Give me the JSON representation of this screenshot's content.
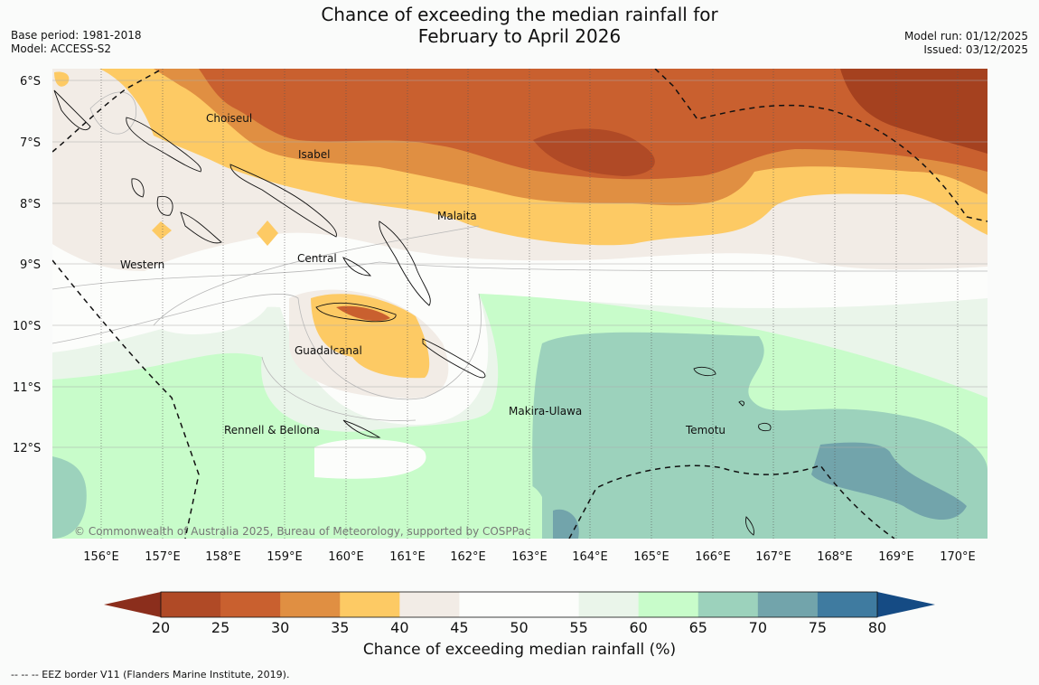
{
  "header": {
    "title_line1": "Chance of exceeding the median rainfall for",
    "title_line2": "February to April 2026",
    "base_period": "Base period: 1981-2018",
    "model": "Model: ACCESS-S2",
    "model_run": "Model run: 01/12/2025",
    "issued": "Issued: 03/12/2025"
  },
  "map": {
    "latitude_labels": [
      "6°S",
      "7°S",
      "8°S",
      "9°S",
      "10°S",
      "11°S",
      "12°S"
    ],
    "longitude_labels": [
      "156°E",
      "157°E",
      "158°E",
      "159°E",
      "160°E",
      "161°E",
      "162°E",
      "163°E",
      "164°E",
      "165°E",
      "166°E",
      "167°E",
      "168°E",
      "169°E",
      "170°E"
    ],
    "regions": [
      "Choiseul",
      "Isabel",
      "Malaita",
      "Central",
      "Western",
      "Guadalcanal",
      "Makira-Ulawa",
      "Rennell & Bellona",
      "Temotu"
    ],
    "copyright": "© Commonwealth of Australia 2025, Bureau of Meteorology, supported by COSPPac"
  },
  "colorbar": {
    "ticks": [
      "20",
      "25",
      "30",
      "35",
      "40",
      "45",
      "50",
      "55",
      "60",
      "65",
      "70",
      "75",
      "80"
    ],
    "colors": [
      "#b04a26",
      "#c9602f",
      "#e08f42",
      "#fdca64",
      "#f2ece6",
      "#fcfdfb",
      "#fcfdfb",
      "#eaf5ea",
      "#c8fcca",
      "#9cd2bc",
      "#72a4ab",
      "#3f7ba0"
    ],
    "low_arrow_color": "#8b2e1c",
    "high_arrow_color": "#154b84",
    "label": "Chance of exceeding median rainfall (%)"
  },
  "footnote": "--  --  -- EEZ border V11 (Flanders Marine Institute, 2019)."
}
